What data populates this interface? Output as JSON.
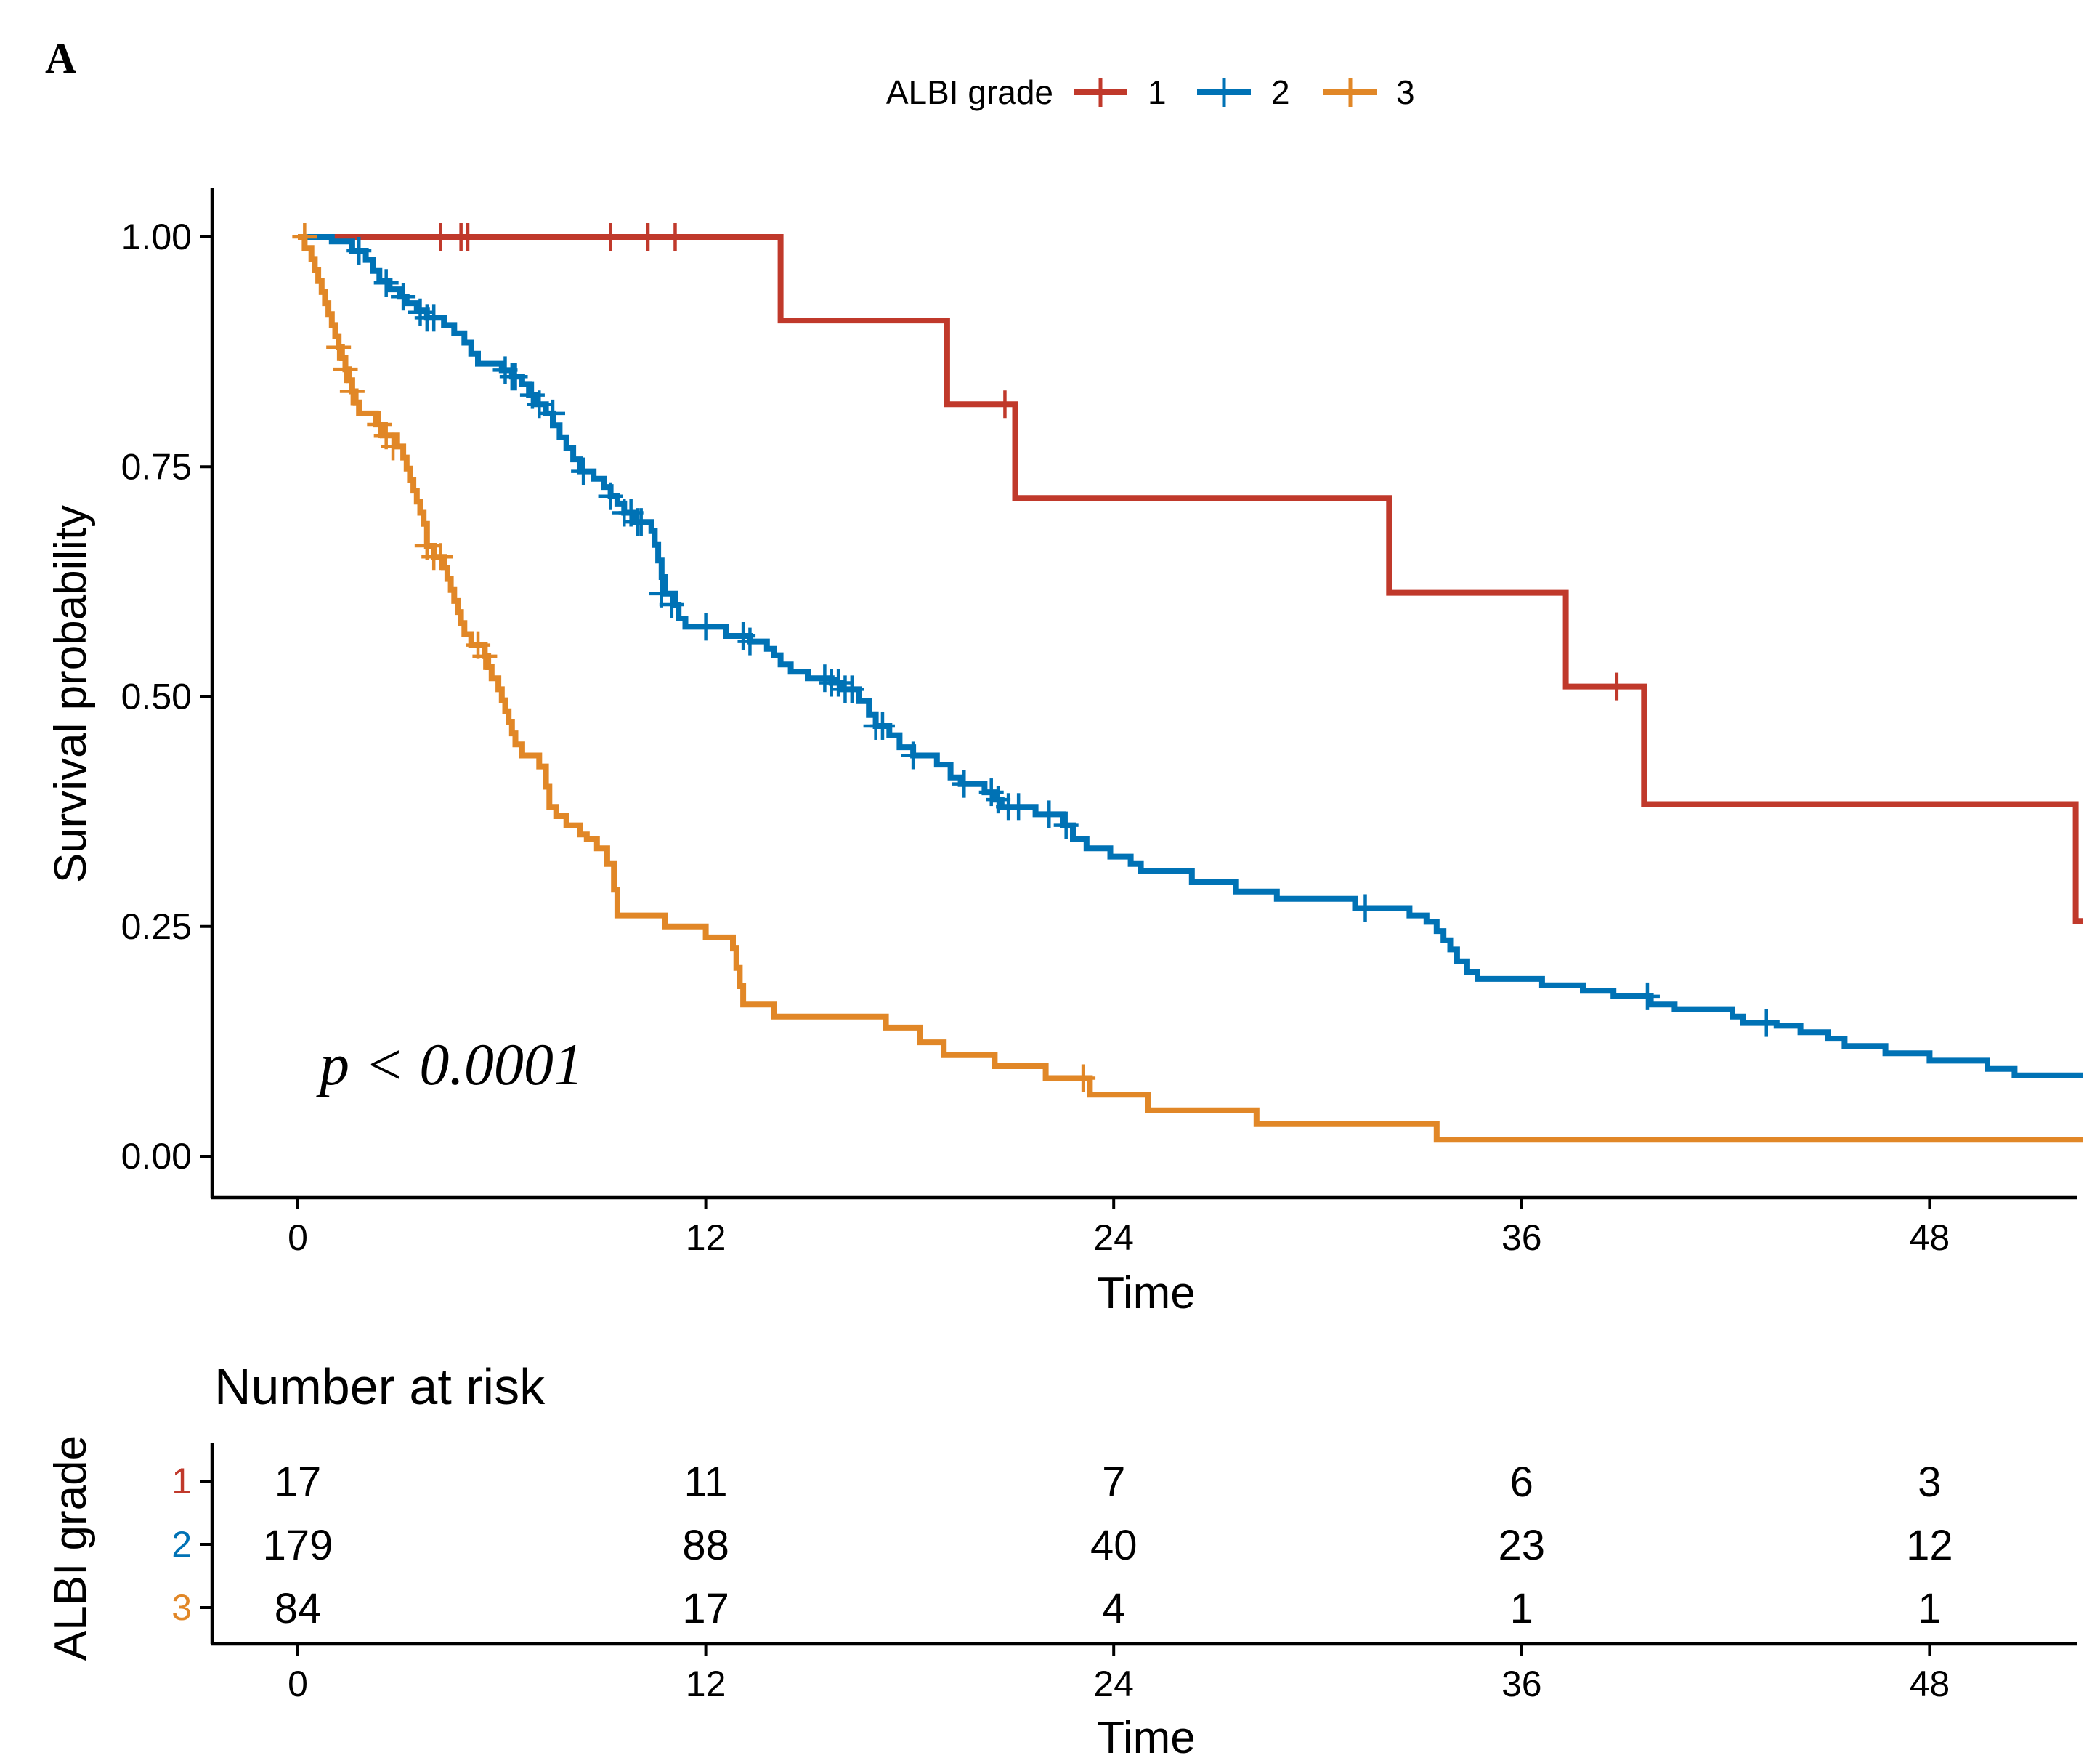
{
  "panel_label": "A",
  "legend": {
    "title": "ALBI grade",
    "items": [
      {
        "label": "1",
        "color": "#C0392B"
      },
      {
        "label": "2",
        "color": "#0072B5"
      },
      {
        "label": "3",
        "color": "#E18727"
      }
    ]
  },
  "annotation": "p < 0.0001",
  "risk_table": {
    "title": "Number at risk",
    "ylabel": "ALBI grade",
    "xlabel": "Time",
    "rows": [
      {
        "label": "1",
        "color": "#C0392B",
        "values": [
          17,
          11,
          7,
          6,
          3
        ]
      },
      {
        "label": "2",
        "color": "#0072B5",
        "values": [
          179,
          88,
          40,
          23,
          12
        ]
      },
      {
        "label": "3",
        "color": "#E18727",
        "values": [
          84,
          17,
          4,
          1,
          1
        ]
      }
    ]
  },
  "chart_data": {
    "type": "line",
    "subtype": "kaplan-meier step",
    "xlabel": "Time",
    "ylabel": "Survival probability",
    "xlim": [
      -2.5,
      52.5
    ],
    "ylim": [
      -0.05,
      1.05
    ],
    "xticks": [
      0,
      12,
      24,
      36,
      48
    ],
    "yticks": [
      0.0,
      0.25,
      0.5,
      0.75,
      1.0
    ],
    "ytick_labels": [
      "0.00",
      "0.25",
      "0.50",
      "0.75",
      "1.00"
    ],
    "grid": false,
    "legend_position": "top",
    "series": [
      {
        "name": "1",
        "color": "#C0392B",
        "steps": [
          [
            0,
            1.0
          ],
          [
            14.2,
            0.909
          ],
          [
            19.1,
            0.818
          ],
          [
            21.1,
            0.716
          ],
          [
            32.1,
            0.613
          ],
          [
            37.3,
            0.511
          ],
          [
            39.6,
            0.383
          ],
          [
            52.3,
            0.256
          ],
          [
            52.5,
            0.256
          ]
        ],
        "censor": [
          [
            4.2,
            1.0
          ],
          [
            4.8,
            1.0
          ],
          [
            5.0,
            1.0
          ],
          [
            9.2,
            1.0
          ],
          [
            10.3,
            1.0
          ],
          [
            11.1,
            1.0
          ],
          [
            20.8,
            0.818
          ],
          [
            38.8,
            0.511
          ]
        ]
      },
      {
        "name": "2",
        "color": "#0072B5",
        "steps": [
          [
            0,
            1.0
          ],
          [
            1.0,
            0.995
          ],
          [
            1.6,
            0.985
          ],
          [
            2.0,
            0.975
          ],
          [
            2.2,
            0.963
          ],
          [
            2.4,
            0.952
          ],
          [
            2.7,
            0.943
          ],
          [
            3.0,
            0.935
          ],
          [
            3.2,
            0.928
          ],
          [
            3.5,
            0.92
          ],
          [
            3.8,
            0.912
          ],
          [
            4.3,
            0.904
          ],
          [
            4.6,
            0.895
          ],
          [
            4.9,
            0.885
          ],
          [
            5.1,
            0.873
          ],
          [
            5.3,
            0.862
          ],
          [
            6.0,
            0.855
          ],
          [
            6.3,
            0.848
          ],
          [
            6.6,
            0.84
          ],
          [
            6.8,
            0.828
          ],
          [
            7.0,
            0.818
          ],
          [
            7.3,
            0.808
          ],
          [
            7.5,
            0.795
          ],
          [
            7.7,
            0.782
          ],
          [
            7.9,
            0.77
          ],
          [
            8.1,
            0.758
          ],
          [
            8.3,
            0.745
          ],
          [
            8.7,
            0.737
          ],
          [
            9.0,
            0.728
          ],
          [
            9.2,
            0.718
          ],
          [
            9.4,
            0.71
          ],
          [
            9.6,
            0.7
          ],
          [
            9.9,
            0.69
          ],
          [
            10.4,
            0.68
          ],
          [
            10.5,
            0.665
          ],
          [
            10.6,
            0.648
          ],
          [
            10.7,
            0.63
          ],
          [
            10.8,
            0.612
          ],
          [
            11.1,
            0.6
          ],
          [
            11.2,
            0.585
          ],
          [
            11.4,
            0.576
          ],
          [
            12.6,
            0.566
          ],
          [
            13.3,
            0.56
          ],
          [
            13.8,
            0.552
          ],
          [
            14.0,
            0.545
          ],
          [
            14.2,
            0.535
          ],
          [
            14.5,
            0.527
          ],
          [
            15.0,
            0.52
          ],
          [
            15.7,
            0.515
          ],
          [
            16.0,
            0.508
          ],
          [
            16.5,
            0.495
          ],
          [
            16.8,
            0.48
          ],
          [
            17.0,
            0.468
          ],
          [
            17.4,
            0.458
          ],
          [
            17.7,
            0.445
          ],
          [
            18.1,
            0.436
          ],
          [
            18.8,
            0.426
          ],
          [
            19.2,
            0.412
          ],
          [
            19.5,
            0.405
          ],
          [
            20.2,
            0.396
          ],
          [
            20.5,
            0.388
          ],
          [
            20.7,
            0.38
          ],
          [
            21.7,
            0.372
          ],
          [
            22.5,
            0.36
          ],
          [
            22.8,
            0.345
          ],
          [
            23.2,
            0.335
          ],
          [
            23.9,
            0.326
          ],
          [
            24.5,
            0.318
          ],
          [
            24.8,
            0.31
          ],
          [
            26.3,
            0.298
          ],
          [
            27.6,
            0.288
          ],
          [
            28.8,
            0.28
          ],
          [
            31.1,
            0.27
          ],
          [
            32.7,
            0.262
          ],
          [
            33.2,
            0.255
          ],
          [
            33.5,
            0.245
          ],
          [
            33.7,
            0.235
          ],
          [
            33.9,
            0.225
          ],
          [
            34.1,
            0.212
          ],
          [
            34.4,
            0.2
          ],
          [
            34.7,
            0.193
          ],
          [
            36.6,
            0.186
          ],
          [
            37.8,
            0.18
          ],
          [
            38.7,
            0.174
          ],
          [
            39.8,
            0.165
          ],
          [
            40.5,
            0.16
          ],
          [
            42.2,
            0.152
          ],
          [
            42.5,
            0.145
          ],
          [
            43.5,
            0.142
          ],
          [
            44.2,
            0.135
          ],
          [
            45.0,
            0.128
          ],
          [
            45.5,
            0.12
          ],
          [
            46.7,
            0.112
          ],
          [
            48.0,
            0.104
          ],
          [
            49.7,
            0.095
          ],
          [
            50.5,
            0.088
          ],
          [
            52.5,
            0.088
          ]
        ],
        "censor": [
          [
            1.8,
            0.985
          ],
          [
            2.6,
            0.95
          ],
          [
            3.1,
            0.935
          ],
          [
            3.6,
            0.918
          ],
          [
            3.8,
            0.912
          ],
          [
            4.0,
            0.912
          ],
          [
            6.1,
            0.855
          ],
          [
            6.3,
            0.848
          ],
          [
            6.4,
            0.848
          ],
          [
            6.9,
            0.828
          ],
          [
            7.1,
            0.818
          ],
          [
            7.5,
            0.808
          ],
          [
            8.4,
            0.745
          ],
          [
            9.2,
            0.718
          ],
          [
            9.6,
            0.7
          ],
          [
            9.8,
            0.7
          ],
          [
            10.0,
            0.69
          ],
          [
            10.1,
            0.69
          ],
          [
            10.7,
            0.612
          ],
          [
            11.0,
            0.6
          ],
          [
            12.0,
            0.576
          ],
          [
            13.1,
            0.566
          ],
          [
            13.3,
            0.56
          ],
          [
            15.5,
            0.52
          ],
          [
            15.7,
            0.515
          ],
          [
            15.9,
            0.515
          ],
          [
            16.1,
            0.508
          ],
          [
            16.3,
            0.508
          ],
          [
            17.0,
            0.468
          ],
          [
            17.2,
            0.468
          ],
          [
            18.1,
            0.436
          ],
          [
            19.6,
            0.405
          ],
          [
            20.4,
            0.396
          ],
          [
            20.6,
            0.388
          ],
          [
            20.9,
            0.38
          ],
          [
            21.2,
            0.38
          ],
          [
            22.1,
            0.372
          ],
          [
            22.6,
            0.36
          ],
          [
            31.4,
            0.27
          ],
          [
            39.7,
            0.174
          ],
          [
            43.2,
            0.145
          ]
        ]
      },
      {
        "name": "3",
        "color": "#E18727",
        "steps": [
          [
            0,
            1.0
          ],
          [
            0.2,
            0.988
          ],
          [
            0.4,
            0.976
          ],
          [
            0.5,
            0.964
          ],
          [
            0.6,
            0.952
          ],
          [
            0.7,
            0.94
          ],
          [
            0.8,
            0.928
          ],
          [
            0.9,
            0.916
          ],
          [
            1.0,
            0.904
          ],
          [
            1.1,
            0.892
          ],
          [
            1.2,
            0.88
          ],
          [
            1.3,
            0.868
          ],
          [
            1.4,
            0.856
          ],
          [
            1.5,
            0.844
          ],
          [
            1.6,
            0.832
          ],
          [
            1.7,
            0.82
          ],
          [
            1.8,
            0.808
          ],
          [
            2.3,
            0.796
          ],
          [
            2.5,
            0.784
          ],
          [
            2.9,
            0.772
          ],
          [
            3.1,
            0.76
          ],
          [
            3.2,
            0.748
          ],
          [
            3.3,
            0.736
          ],
          [
            3.4,
            0.724
          ],
          [
            3.5,
            0.712
          ],
          [
            3.6,
            0.7
          ],
          [
            3.7,
            0.688
          ],
          [
            3.8,
            0.664
          ],
          [
            4.0,
            0.652
          ],
          [
            4.3,
            0.64
          ],
          [
            4.4,
            0.628
          ],
          [
            4.5,
            0.616
          ],
          [
            4.6,
            0.604
          ],
          [
            4.7,
            0.592
          ],
          [
            4.8,
            0.58
          ],
          [
            4.9,
            0.568
          ],
          [
            5.1,
            0.556
          ],
          [
            5.5,
            0.544
          ],
          [
            5.6,
            0.532
          ],
          [
            5.7,
            0.52
          ],
          [
            5.9,
            0.508
          ],
          [
            6.0,
            0.496
          ],
          [
            6.1,
            0.484
          ],
          [
            6.2,
            0.472
          ],
          [
            6.3,
            0.46
          ],
          [
            6.4,
            0.448
          ],
          [
            6.6,
            0.436
          ],
          [
            7.1,
            0.424
          ],
          [
            7.3,
            0.402
          ],
          [
            7.4,
            0.38
          ],
          [
            7.6,
            0.37
          ],
          [
            7.9,
            0.36
          ],
          [
            8.3,
            0.35
          ],
          [
            8.5,
            0.345
          ],
          [
            8.8,
            0.335
          ],
          [
            9.1,
            0.318
          ],
          [
            9.3,
            0.29
          ],
          [
            9.4,
            0.262
          ],
          [
            10.8,
            0.25
          ],
          [
            12.0,
            0.238
          ],
          [
            12.8,
            0.226
          ],
          [
            12.9,
            0.205
          ],
          [
            13.0,
            0.185
          ],
          [
            13.1,
            0.165
          ],
          [
            14.0,
            0.152
          ],
          [
            17.3,
            0.14
          ],
          [
            18.3,
            0.124
          ],
          [
            19.0,
            0.11
          ],
          [
            20.5,
            0.098
          ],
          [
            22.0,
            0.085
          ],
          [
            23.3,
            0.067
          ],
          [
            25.0,
            0.05
          ],
          [
            28.2,
            0.035
          ],
          [
            33.5,
            0.018
          ],
          [
            52.5,
            0.018
          ]
        ],
        "censor": [
          [
            0.2,
            1.0
          ],
          [
            1.2,
            0.88
          ],
          [
            1.4,
            0.856
          ],
          [
            1.6,
            0.832
          ],
          [
            2.4,
            0.796
          ],
          [
            2.6,
            0.784
          ],
          [
            2.8,
            0.772
          ],
          [
            3.8,
            0.664
          ],
          [
            4.0,
            0.652
          ],
          [
            4.2,
            0.652
          ],
          [
            5.3,
            0.556
          ],
          [
            5.5,
            0.544
          ],
          [
            23.1,
            0.085
          ]
        ]
      }
    ]
  }
}
